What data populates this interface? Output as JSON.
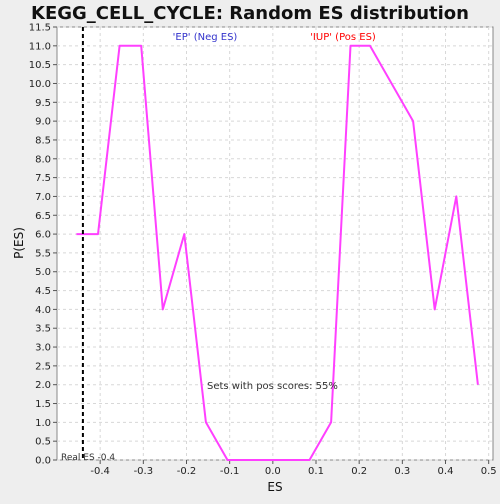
{
  "chart_data": {
    "type": "line",
    "title": "KEGG_CELL_CYCLE: Random ES distribution",
    "xlabel": "ES",
    "ylabel": "P(ES)",
    "xlim": [
      -0.5,
      0.51
    ],
    "ylim": [
      0.0,
      11.5
    ],
    "x_ticks": [
      -0.4,
      -0.3,
      -0.2,
      -0.1,
      0.0,
      0.1,
      0.2,
      0.3,
      0.4,
      0.5
    ],
    "x_tick_labels": [
      "-0.4",
      "-0.3",
      "-0.2",
      "-0.1",
      "0.0",
      "0.1",
      "0.2",
      "0.3",
      "0.4",
      "0.5"
    ],
    "y_ticks": [
      0.0,
      0.5,
      1.0,
      1.5,
      2.0,
      2.5,
      3.0,
      3.5,
      4.0,
      4.5,
      5.0,
      5.5,
      6.0,
      6.5,
      7.0,
      7.5,
      8.0,
      8.5,
      9.0,
      9.5,
      10.0,
      10.5,
      11.0,
      11.5
    ],
    "y_tick_labels": [
      "0.0",
      "0.5",
      "1.0",
      "1.5",
      "2.0",
      "2.5",
      "3.0",
      "3.5",
      "4.0",
      "4.5",
      "5.0",
      "5.5",
      "6.0",
      "6.5",
      "7.0",
      "7.5",
      "8.0",
      "8.5",
      "9.0",
      "9.5",
      "10.0",
      "10.5",
      "11.0",
      "11.5"
    ],
    "grid": true,
    "series": [
      {
        "color": "#ff40ff",
        "x": [
          -0.455,
          -0.405,
          -0.355,
          -0.305,
          -0.255,
          -0.205,
          -0.155,
          -0.105,
          -0.055,
          -0.005,
          0.045,
          0.085,
          0.135,
          0.18,
          0.225,
          0.325,
          0.375,
          0.425,
          0.475
        ],
        "y": [
          6.0,
          6.0,
          11.0,
          11.0,
          4.0,
          6.0,
          1.0,
          0.0,
          0.0,
          0.0,
          0.0,
          0.0,
          1.0,
          11.0,
          11.0,
          9.0,
          4.0,
          7.0,
          2.0
        ]
      }
    ],
    "real_es": {
      "value": -0.44,
      "label": "Real ES -0.4",
      "color": "#000000"
    },
    "annotations": {
      "neg_label": "'EP' (Neg ES)",
      "neg_color": "#3333cc",
      "pos_label": "'IUP' (Pos ES)",
      "pos_color": "#ff0000",
      "sets_text": "Sets with pos scores: 55%"
    },
    "background_color": "#ffffff",
    "grid_color": "#d8d8d8"
  }
}
